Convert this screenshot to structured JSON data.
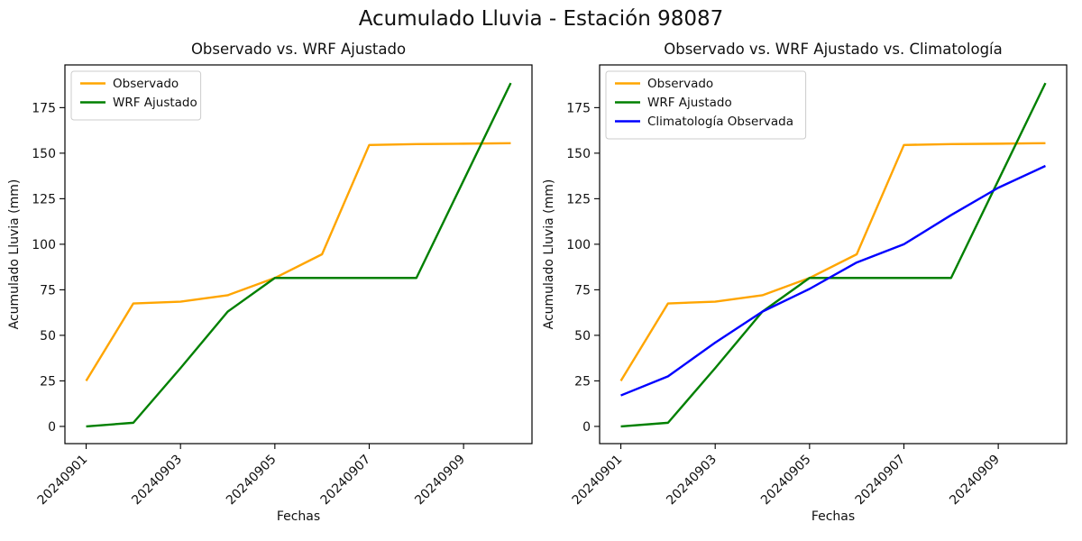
{
  "suptitle": "Acumulado Lluvia - Estación 98087",
  "colors": {
    "observado": "#FFA500",
    "wrf_ajustado": "#008000",
    "climatologia": "#0000FF",
    "spine": "#000000",
    "legend_border": "#cccccc",
    "legend_bg": "#ffffff"
  },
  "chart_data": [
    {
      "type": "line",
      "title": "Observado vs. WRF Ajustado",
      "xlabel": "Fechas",
      "ylabel": "Acumulado Lluvia (mm)",
      "categories": [
        "20240901",
        "20240902",
        "20240903",
        "20240904",
        "20240905",
        "20240906",
        "20240907",
        "20240908",
        "20240909",
        "20240910"
      ],
      "xtick_labels": [
        "20240901",
        "20240903",
        "20240905",
        "20240907",
        "20240909"
      ],
      "xtick_rotation_deg": 45,
      "yticks": [
        0,
        25,
        50,
        75,
        100,
        125,
        150,
        175
      ],
      "ylim": [
        -9.45,
        198.45
      ],
      "grid": false,
      "legend_position": "upper left",
      "series": [
        {
          "name": "Observado",
          "color": "#FFA500",
          "values": [
            25,
            67.5,
            68.5,
            72,
            81.5,
            94.5,
            154.5,
            155,
            155.2,
            155.5
          ]
        },
        {
          "name": "WRF Ajustado",
          "color": "#008000",
          "values": [
            0,
            2,
            32,
            63,
            81.5,
            81.5,
            81.5,
            81.5,
            135,
            188.5
          ]
        }
      ]
    },
    {
      "type": "line",
      "title": "Observado vs. WRF Ajustado vs. Climatología",
      "xlabel": "Fechas",
      "ylabel": "Acumulado Lluvia (mm)",
      "categories": [
        "20240901",
        "20240902",
        "20240903",
        "20240904",
        "20240905",
        "20240906",
        "20240907",
        "20240908",
        "20240909",
        "20240910"
      ],
      "xtick_labels": [
        "20240901",
        "20240903",
        "20240905",
        "20240907",
        "20240909"
      ],
      "xtick_rotation_deg": 45,
      "yticks": [
        0,
        25,
        50,
        75,
        100,
        125,
        150,
        175
      ],
      "ylim": [
        -9.45,
        198.45
      ],
      "grid": false,
      "legend_position": "upper left",
      "series": [
        {
          "name": "Observado",
          "color": "#FFA500",
          "values": [
            25,
            67.5,
            68.5,
            72,
            81.5,
            94.5,
            154.5,
            155,
            155.2,
            155.5
          ]
        },
        {
          "name": "WRF Ajustado",
          "color": "#008000",
          "values": [
            0,
            2,
            32,
            63,
            81.5,
            81.5,
            81.5,
            81.5,
            135,
            188.5
          ]
        },
        {
          "name": "Climatología Observada",
          "color": "#0000FF",
          "values": [
            17,
            27.5,
            46,
            63,
            75.5,
            90,
            100,
            116,
            131,
            143
          ]
        }
      ]
    }
  ]
}
